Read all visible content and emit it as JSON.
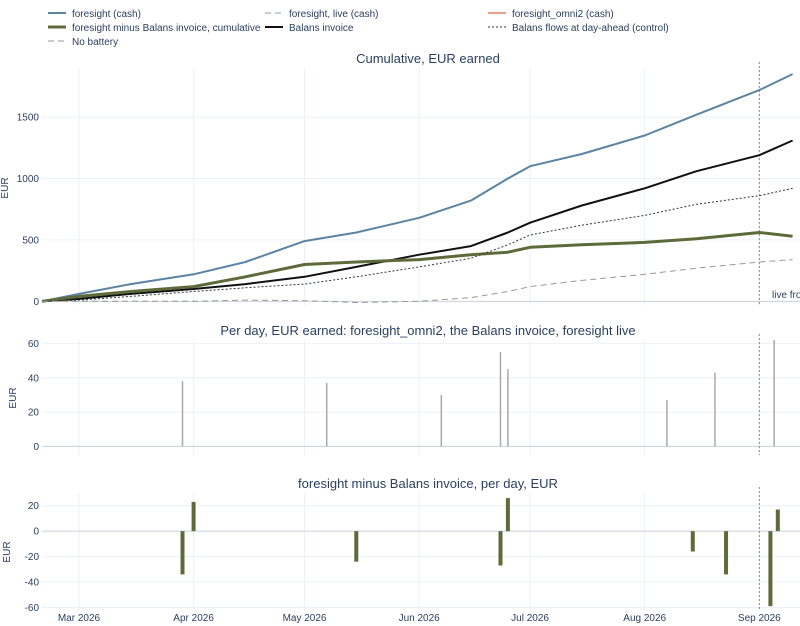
{
  "legend": [
    {
      "label": "foresight (cash)",
      "color": "#5b84a3",
      "dash": "solid",
      "width": 2
    },
    {
      "label": "foresight, live (cash)",
      "color": "#8a9bb0",
      "dash": "dashed",
      "width": 1
    },
    {
      "label": "foresight_omni2 (cash)",
      "color": "#e8a089",
      "dash": "solid",
      "width": 2
    },
    {
      "label": "foresight minus Balans invoice, cumulative",
      "color": "#5d6b3a",
      "dash": "solid",
      "width": 3
    },
    {
      "label": "Balans invoice",
      "color": "#111111",
      "dash": "solid",
      "width": 2
    },
    {
      "label": "Balans flows at day-ahead (control)",
      "color": "#333333",
      "dash": "dotted",
      "width": 1
    },
    {
      "label": "No battery",
      "color": "#999999",
      "dash": "dashed",
      "width": 1
    }
  ],
  "annotation": "live from",
  "xaxis_ticks": [
    "Mar 2026",
    "Apr 2026",
    "May 2026",
    "Jun 2026",
    "Jul 2026",
    "Aug 2026",
    "Sep 2026"
  ],
  "chart_data": [
    {
      "type": "line",
      "title": "Cumulative, EUR earned",
      "ylabel": "EUR",
      "ylim": [
        -30,
        1900
      ],
      "yticks": [
        0,
        500,
        1000,
        1500
      ],
      "x_dates": [
        "2026-02-19",
        "2026-03-01",
        "2026-03-15",
        "2026-04-01",
        "2026-04-15",
        "2026-05-01",
        "2026-05-15",
        "2026-06-01",
        "2026-06-15",
        "2026-06-25",
        "2026-07-01",
        "2026-07-15",
        "2026-08-01",
        "2026-08-15",
        "2026-09-01",
        "2026-09-10"
      ],
      "series": [
        {
          "name": "foresight (cash)",
          "values": [
            0,
            60,
            140,
            220,
            320,
            490,
            560,
            680,
            820,
            1000,
            1100,
            1200,
            1350,
            1520,
            1720,
            1850
          ]
        },
        {
          "name": "Balans invoice",
          "values": [
            0,
            20,
            60,
            100,
            140,
            200,
            280,
            380,
            450,
            560,
            640,
            780,
            920,
            1060,
            1190,
            1310
          ]
        },
        {
          "name": "foresight minus Balans invoice, cumulative",
          "values": [
            0,
            40,
            80,
            120,
            200,
            300,
            320,
            340,
            380,
            400,
            440,
            460,
            480,
            510,
            560,
            530
          ]
        },
        {
          "name": "Balans flows at day-ahead (control)",
          "values": [
            0,
            10,
            40,
            80,
            110,
            140,
            200,
            280,
            350,
            460,
            540,
            620,
            700,
            790,
            860,
            920
          ]
        },
        {
          "name": "foresight, live (cash)",
          "values": [
            0,
            0,
            0,
            0,
            10,
            5,
            -10,
            0,
            30,
            80,
            120,
            170,
            220,
            270,
            320,
            340
          ]
        }
      ]
    },
    {
      "type": "bar",
      "title": "Per day, EUR earned: foresight_omni2, the Balans invoice, foresight live",
      "ylabel": "EUR",
      "ylim": [
        -5,
        62
      ],
      "yticks": [
        0,
        20,
        40,
        60
      ],
      "notable_points": [
        {
          "date": "2026-03-29",
          "value": 38
        },
        {
          "date": "2026-05-07",
          "value": 37
        },
        {
          "date": "2026-06-07",
          "value": 30
        },
        {
          "date": "2026-06-23",
          "value": 55
        },
        {
          "date": "2026-06-25",
          "value": 45
        },
        {
          "date": "2026-08-07",
          "value": 27
        },
        {
          "date": "2026-08-20",
          "value": 43
        },
        {
          "date": "2026-09-05",
          "value": 62
        }
      ]
    },
    {
      "type": "bar",
      "title": "foresight minus Balans invoice, per day, EUR",
      "ylabel": "EUR",
      "ylim": [
        -62,
        30
      ],
      "yticks": [
        -60,
        -40,
        -20,
        0,
        20
      ],
      "notable_points": [
        {
          "date": "2026-03-29",
          "value": -34
        },
        {
          "date": "2026-04-01",
          "value": 23
        },
        {
          "date": "2026-05-15",
          "value": -24
        },
        {
          "date": "2026-06-23",
          "value": -27
        },
        {
          "date": "2026-06-25",
          "value": 26
        },
        {
          "date": "2026-08-14",
          "value": -16
        },
        {
          "date": "2026-08-23",
          "value": -34
        },
        {
          "date": "2026-09-04",
          "value": -59
        },
        {
          "date": "2026-09-06",
          "value": 17
        }
      ]
    }
  ]
}
